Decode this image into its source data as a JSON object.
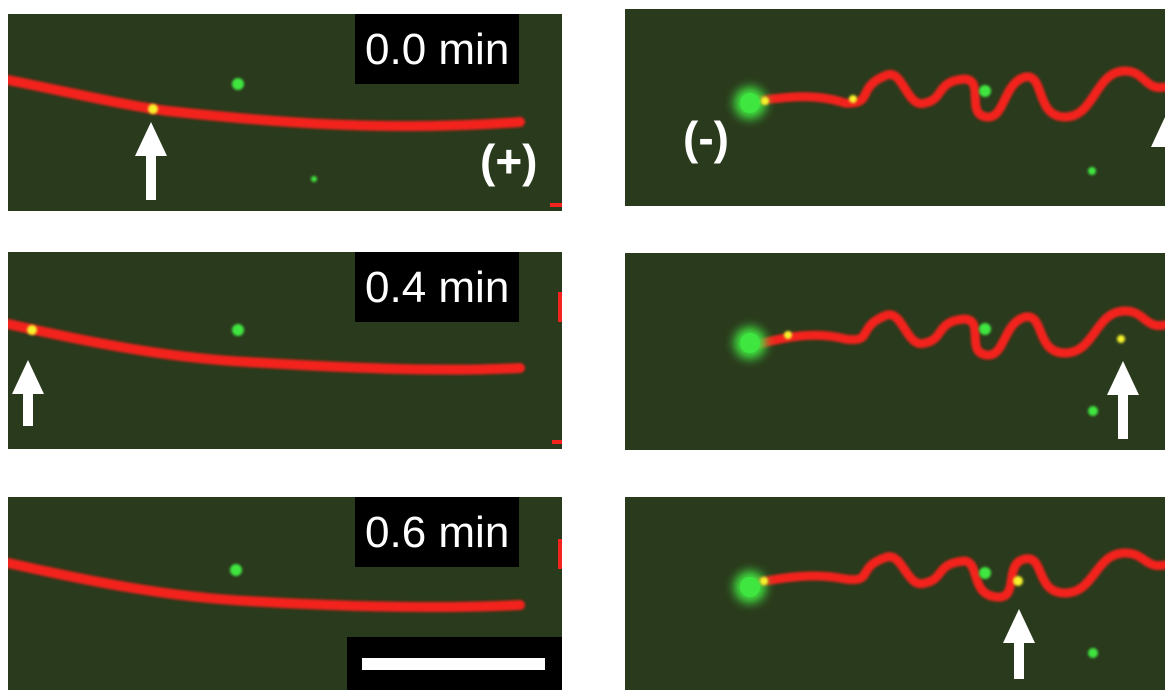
{
  "figure": {
    "time_labels": [
      "0.0 min",
      "0.4 min",
      "0.6 min"
    ],
    "plus_end_label": "(+)",
    "minus_end_label": "(-)",
    "colors": {
      "background": "#2a3a1c",
      "microtubule": "#f3231e",
      "green_spot": "#3fe640",
      "yellow_spot": "#f6f22a",
      "arrow": "#ffffff",
      "label_box": "#000000"
    }
  },
  "panels": [
    {
      "id": "left-0",
      "time_label_index": 0,
      "polarity": "plus"
    },
    {
      "id": "left-1",
      "time_label_index": 1
    },
    {
      "id": "left-2",
      "time_label_index": 2,
      "scale_bar": true
    },
    {
      "id": "right-0",
      "polarity": "minus"
    },
    {
      "id": "right-1"
    },
    {
      "id": "right-2"
    }
  ]
}
